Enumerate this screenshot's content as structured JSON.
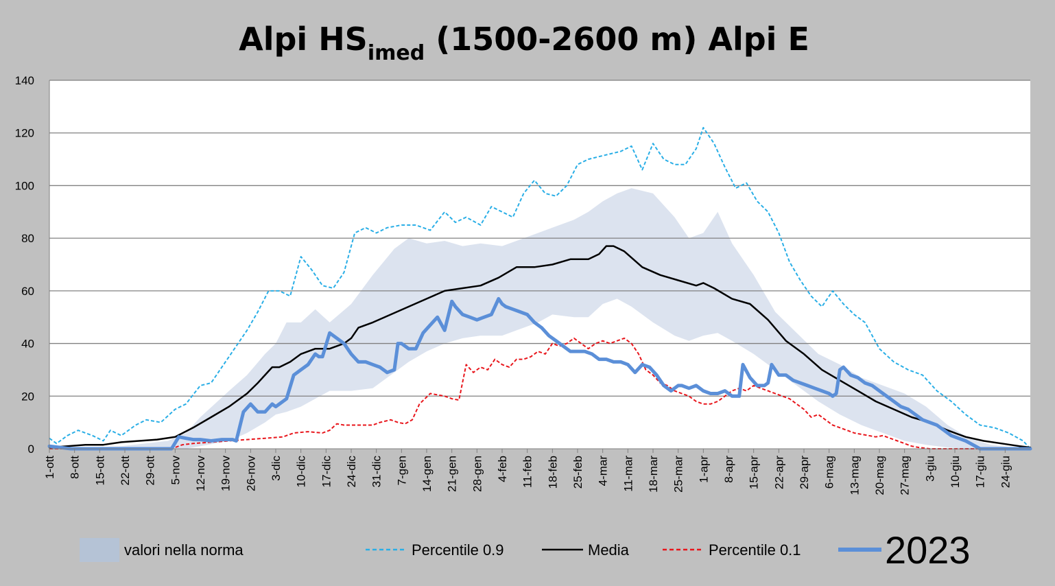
{
  "chart_data": {
    "type": "line",
    "title": {
      "prefix": "Alpi HS",
      "subscript": "imed",
      "suffix": " (1500-2600 m) Alpi E"
    },
    "ylim": [
      0,
      140
    ],
    "yticks": [
      0,
      20,
      40,
      60,
      80,
      100,
      120,
      140
    ],
    "grid": true,
    "x_day_range": [
      0,
      273
    ],
    "x_ticks": [
      {
        "day": 0,
        "label": "1-ott"
      },
      {
        "day": 7,
        "label": "8-ott"
      },
      {
        "day": 14,
        "label": "15-ott"
      },
      {
        "day": 21,
        "label": "22-ott"
      },
      {
        "day": 28,
        "label": "29-ott"
      },
      {
        "day": 35,
        "label": "5-nov"
      },
      {
        "day": 42,
        "label": "12-nov"
      },
      {
        "day": 49,
        "label": "19-nov"
      },
      {
        "day": 56,
        "label": "26-nov"
      },
      {
        "day": 63,
        "label": "3-dic"
      },
      {
        "day": 70,
        "label": "10-dic"
      },
      {
        "day": 77,
        "label": "17-dic"
      },
      {
        "day": 84,
        "label": "24-dic"
      },
      {
        "day": 91,
        "label": "31-dic"
      },
      {
        "day": 98,
        "label": "7-gen"
      },
      {
        "day": 105,
        "label": "14-gen"
      },
      {
        "day": 112,
        "label": "21-gen"
      },
      {
        "day": 119,
        "label": "28-gen"
      },
      {
        "day": 126,
        "label": "4-feb"
      },
      {
        "day": 133,
        "label": "11-feb"
      },
      {
        "day": 140,
        "label": "18-feb"
      },
      {
        "day": 147,
        "label": "25-feb"
      },
      {
        "day": 154,
        "label": "4-mar"
      },
      {
        "day": 161,
        "label": "11-mar"
      },
      {
        "day": 168,
        "label": "18-mar"
      },
      {
        "day": 175,
        "label": "25-mar"
      },
      {
        "day": 182,
        "label": "1-apr"
      },
      {
        "day": 189,
        "label": "8-apr"
      },
      {
        "day": 196,
        "label": "15-apr"
      },
      {
        "day": 203,
        "label": "22-apr"
      },
      {
        "day": 210,
        "label": "29-apr"
      },
      {
        "day": 217,
        "label": "6-mag"
      },
      {
        "day": 224,
        "label": "13-mag"
      },
      {
        "day": 231,
        "label": "20-mag"
      },
      {
        "day": 238,
        "label": "27-mag"
      },
      {
        "day": 245,
        "label": "3-giu"
      },
      {
        "day": 252,
        "label": "10-giu"
      },
      {
        "day": 259,
        "label": "17-giu"
      },
      {
        "day": 266,
        "label": "24-giu"
      }
    ],
    "band": {
      "name": "valori nella norma",
      "x": [
        0,
        20,
        33,
        38,
        42,
        50,
        55,
        60,
        63,
        66,
        70,
        74,
        78,
        84,
        90,
        96,
        100,
        105,
        110,
        115,
        120,
        126,
        130,
        136,
        140,
        146,
        150,
        154,
        158,
        162,
        168,
        174,
        178,
        182,
        186,
        190,
        196,
        202,
        208,
        214,
        220,
        226,
        232,
        238,
        244,
        250,
        256,
        262,
        268,
        273
      ],
      "upper": [
        0,
        1,
        3,
        6,
        12,
        22,
        28,
        36,
        40,
        48,
        48,
        53,
        48,
        55,
        66,
        76,
        80,
        78,
        79,
        77,
        78,
        77,
        79,
        82,
        84,
        87,
        90,
        94,
        97,
        99,
        97,
        88,
        80,
        82,
        90,
        78,
        66,
        52,
        44,
        36,
        32,
        27,
        24,
        21,
        16,
        9,
        4,
        1.5,
        0.5,
        0
      ],
      "lower": [
        0,
        0,
        0,
        0,
        1,
        3,
        6,
        10,
        13,
        14,
        16,
        19,
        22,
        22,
        23,
        29,
        33,
        37,
        40,
        42,
        43,
        43,
        45,
        48,
        51,
        50,
        50,
        55,
        57,
        54,
        48,
        43,
        41,
        43,
        44,
        41,
        36,
        30,
        24,
        18,
        13,
        9,
        6,
        3,
        1.5,
        0.5,
        0,
        0,
        0,
        0
      ]
    },
    "series": [
      {
        "name": "Percentile 0.9",
        "style": "dashed",
        "color": "#29aee6",
        "x": [
          0,
          2,
          5,
          8,
          12,
          15,
          17,
          20,
          24,
          27,
          31,
          35,
          38,
          42,
          45,
          48,
          52,
          55,
          58,
          61,
          64,
          67,
          70,
          73,
          76,
          79,
          82,
          85,
          88,
          91,
          94,
          98,
          102,
          106,
          110,
          113,
          116,
          120,
          123,
          126,
          129,
          132,
          135,
          138,
          141,
          144,
          147,
          150,
          153,
          156,
          159,
          162,
          165,
          168,
          171,
          174,
          177,
          180,
          182,
          185,
          188,
          191,
          194,
          197,
          200,
          203,
          206,
          209,
          212,
          215,
          218,
          221,
          224,
          227,
          231,
          235,
          239,
          243,
          247,
          251,
          255,
          259,
          263,
          267,
          271,
          273
        ],
        "values": [
          4,
          2,
          5,
          7,
          5,
          3,
          7,
          5,
          9,
          11,
          10,
          15,
          17,
          24,
          25,
          31,
          39,
          45,
          52,
          60,
          60,
          58,
          73,
          68,
          62,
          61,
          67,
          82,
          84,
          82,
          84,
          85,
          85,
          83,
          90,
          86,
          88,
          85,
          92,
          90,
          88,
          97,
          102,
          97,
          96,
          100,
          108,
          110,
          111,
          112,
          113,
          115,
          106,
          116,
          110,
          108,
          108,
          114,
          122,
          116,
          107,
          99,
          101,
          94,
          90,
          82,
          71,
          64,
          58,
          54,
          60,
          55,
          51,
          48,
          38,
          33,
          30,
          28,
          22,
          18,
          13,
          9,
          8,
          6,
          3,
          0
        ]
      },
      {
        "name": "Media",
        "style": "solid",
        "color": "#000000",
        "x": [
          0,
          5,
          10,
          15,
          20,
          25,
          30,
          35,
          40,
          45,
          50,
          55,
          58,
          60,
          62,
          64,
          67,
          70,
          74,
          78,
          82,
          84,
          86,
          90,
          95,
          100,
          105,
          110,
          115,
          120,
          125,
          130,
          135,
          140,
          145,
          150,
          153,
          155,
          157,
          160,
          165,
          170,
          175,
          180,
          182,
          185,
          190,
          195,
          200,
          205,
          210,
          215,
          220,
          225,
          230,
          235,
          240,
          245,
          250,
          255,
          260,
          265,
          270,
          273
        ],
        "values": [
          0.5,
          1,
          1.5,
          1.5,
          2.5,
          3,
          3.5,
          4.5,
          8,
          12,
          16,
          21,
          25,
          28,
          31,
          31,
          33,
          36,
          38,
          38,
          40,
          42,
          46,
          48,
          51,
          54,
          57,
          60,
          61,
          62,
          65,
          69,
          69,
          70,
          72,
          72,
          74,
          77,
          77,
          75,
          69,
          66,
          64,
          62,
          63,
          61,
          57,
          55,
          49,
          41,
          36,
          30,
          26,
          22,
          18,
          15,
          12,
          10,
          7,
          4.5,
          3,
          2,
          1,
          0.5
        ]
      },
      {
        "name": "Percentile 0.1",
        "style": "dashed",
        "color": "#e8151b",
        "x": [
          0,
          32,
          35,
          37,
          40,
          45,
          50,
          55,
          60,
          65,
          68,
          72,
          76,
          78,
          80,
          82,
          86,
          90,
          92,
          95,
          97,
          99,
          101,
          103,
          106,
          110,
          112,
          114,
          116,
          118,
          120,
          122,
          124,
          126,
          128,
          130,
          132,
          134,
          136,
          138,
          140,
          142,
          144,
          146,
          148,
          150,
          152,
          154,
          156,
          158,
          160,
          162,
          164,
          166,
          168,
          170,
          172,
          174,
          176,
          178,
          180,
          182,
          184,
          186,
          188,
          190,
          192,
          194,
          196,
          198,
          200,
          202,
          204,
          206,
          208,
          210,
          212,
          214,
          216,
          218,
          220,
          222,
          224,
          226,
          228,
          230,
          232,
          234,
          236,
          238,
          240,
          242,
          245,
          250,
          255,
          258,
          260,
          273
        ],
        "values": [
          0,
          0,
          0.5,
          1.5,
          2,
          2.5,
          3,
          3.5,
          4,
          4.5,
          6,
          6.5,
          6,
          7,
          9.5,
          9,
          9,
          9,
          10,
          11,
          10,
          9.5,
          11,
          17,
          21,
          20,
          19,
          18.5,
          32,
          29,
          31,
          30,
          34,
          32,
          31,
          34,
          34,
          35,
          37,
          36,
          40,
          39,
          40,
          42,
          40,
          38,
          40,
          41,
          40,
          41,
          42,
          40,
          36,
          30,
          28,
          25,
          24,
          22,
          21,
          20,
          18,
          17,
          17,
          18,
          20,
          22,
          23,
          22,
          24,
          23,
          22,
          21,
          20,
          19,
          17,
          15,
          12,
          13,
          11,
          9,
          8,
          7,
          6,
          5.5,
          5,
          4.5,
          5,
          4,
          3,
          2,
          1,
          0.5,
          0,
          0,
          0,
          0,
          0,
          0
        ]
      },
      {
        "name": "2023",
        "style": "solid-thick",
        "color": "#5b8fd8",
        "x": [
          0,
          3,
          6,
          10,
          20,
          30,
          32,
          34,
          36,
          38,
          40,
          42,
          45,
          48,
          50,
          51,
          52,
          54,
          56,
          58,
          60,
          62,
          63,
          64,
          66,
          68,
          70,
          72,
          74,
          75,
          76,
          78,
          80,
          82,
          84,
          86,
          88,
          90,
          92,
          94,
          96,
          97,
          98,
          100,
          102,
          104,
          106,
          108,
          110,
          112,
          113,
          115,
          117,
          119,
          121,
          123,
          125,
          126,
          127,
          129,
          131,
          133,
          135,
          137,
          139,
          141,
          143,
          145,
          147,
          149,
          151,
          153,
          155,
          157,
          159,
          161,
          163,
          165,
          167,
          169,
          171,
          173,
          175,
          176,
          178,
          180,
          182,
          184,
          186,
          188,
          190,
          192,
          193,
          195,
          197,
          199,
          200,
          201,
          203,
          205,
          207,
          209,
          211,
          213,
          215,
          217,
          218,
          219,
          220,
          221,
          223,
          225,
          227,
          229,
          231,
          233,
          235,
          237,
          239,
          241,
          243,
          245,
          247,
          249,
          251,
          253,
          255,
          257,
          259,
          262,
          266,
          270,
          273
        ],
        "values": [
          1,
          0.5,
          0,
          0,
          0,
          0,
          0,
          0,
          4.5,
          4,
          3.5,
          3.5,
          3,
          3.5,
          3.5,
          3.5,
          3,
          14,
          17,
          14,
          14,
          17,
          16,
          17,
          19,
          28,
          30,
          32,
          36,
          35,
          35,
          44,
          42,
          40,
          36,
          33,
          33,
          32,
          31,
          29,
          30,
          40,
          40,
          38,
          38,
          44,
          47,
          50,
          45,
          56,
          54,
          51,
          50,
          49,
          50,
          51,
          57,
          55,
          54,
          53,
          52,
          51,
          48,
          46,
          43,
          41,
          39,
          37,
          37,
          37,
          36,
          34,
          34,
          33,
          33,
          32,
          29,
          32,
          31,
          28,
          24,
          22,
          24,
          24,
          23,
          24,
          22,
          21,
          21,
          22,
          20,
          20,
          32,
          27,
          24,
          24,
          25,
          32,
          28,
          28,
          26,
          25,
          24,
          23,
          22,
          21,
          20,
          21,
          30,
          31,
          28,
          27,
          25,
          24,
          22,
          20,
          18,
          16,
          15,
          13,
          11,
          10,
          9,
          7,
          5,
          4,
          3,
          1.5,
          0,
          0,
          0,
          0,
          0
        ]
      }
    ],
    "legend": [
      {
        "key": "band",
        "label": "valori nella norma"
      },
      {
        "key": "p90",
        "label": "Percentile 0.9"
      },
      {
        "key": "media",
        "label": "Media"
      },
      {
        "key": "p10",
        "label": "Percentile 0.1"
      },
      {
        "key": "year",
        "label": "2023"
      }
    ],
    "colors": {
      "background": "#c0c0c0",
      "plot_area": "#ffffff",
      "band": "#dce3ef",
      "band_legend": "#b5c3d6",
      "grid": "#808080"
    }
  }
}
